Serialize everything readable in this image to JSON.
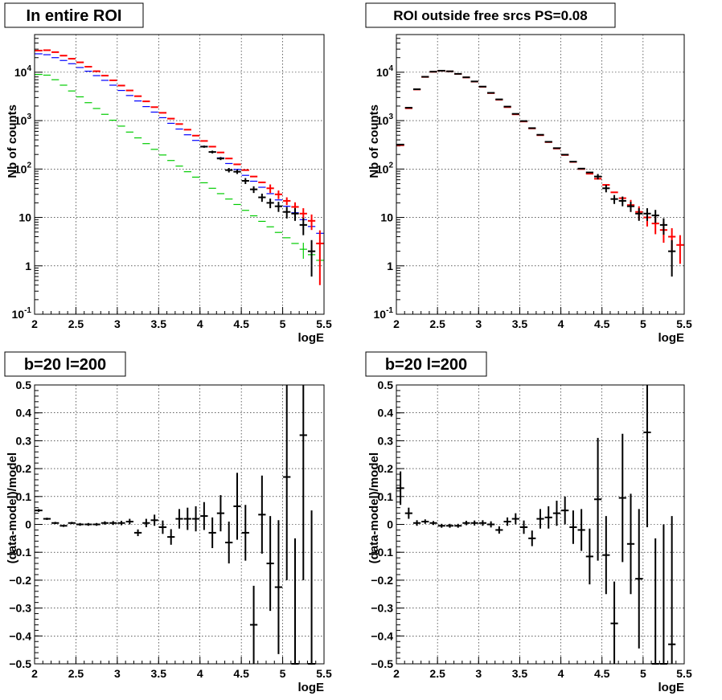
{
  "chart_data": [
    {
      "type": "histogram",
      "title": "In entire ROI",
      "xlabel": "logE",
      "ylabel": "Nb of counts",
      "xlim": [
        2,
        5.5
      ],
      "ylim": [
        0.1,
        60000
      ],
      "yscale": "log",
      "grid": true,
      "xticks": [
        "2",
        "2.5",
        "3",
        "3.5",
        "4",
        "4.5",
        "5",
        "5.5"
      ],
      "yticks": [
        {
          "label": "10^-1",
          "v": 0.1
        },
        {
          "label": "1",
          "v": 1
        },
        {
          "label": "10",
          "v": 10
        },
        {
          "label": "10^2",
          "v": 100
        },
        {
          "label": "10^3",
          "v": 1000
        },
        {
          "label": "10^4",
          "v": 10000
        }
      ],
      "series": [
        {
          "color": "#0000ff",
          "x": [
            2.05,
            2.15,
            2.25,
            2.35,
            2.45,
            2.55,
            2.65,
            2.75,
            2.85,
            2.95,
            3.05,
            3.15,
            3.25,
            3.35,
            3.45,
            3.55,
            3.65,
            3.75,
            3.85,
            3.95,
            4.05,
            4.15,
            4.25,
            4.35,
            4.45,
            4.55,
            4.65,
            4.75,
            4.85,
            4.95,
            5.05,
            5.15,
            5.25,
            5.35,
            5.45
          ],
          "y": [
            24000,
            23000,
            20000,
            17500,
            15000,
            12500,
            10500,
            8500,
            6800,
            5400,
            4200,
            3300,
            2550,
            1950,
            1500,
            1150,
            880,
            670,
            510,
            390,
            295,
            225,
            170,
            130,
            98,
            74,
            56,
            42,
            31,
            23,
            17,
            12.5,
            9,
            6.5,
            4.7
          ],
          "err": [
            0,
            0,
            0,
            0,
            0,
            0,
            0,
            0,
            0,
            0,
            0,
            0,
            0,
            0,
            0,
            0,
            0,
            0,
            0,
            0,
            0,
            0,
            0,
            0,
            0,
            0,
            0,
            0,
            0,
            0,
            0,
            0,
            0,
            0,
            0
          ]
        },
        {
          "color": "#00cc00",
          "x": [
            2.05,
            2.15,
            2.25,
            2.35,
            2.45,
            2.55,
            2.65,
            2.75,
            2.85,
            2.95,
            3.05,
            3.15,
            3.25,
            3.35,
            3.45,
            3.55,
            3.65,
            3.75,
            3.85,
            3.95,
            4.05,
            4.15,
            4.25,
            4.35,
            4.45,
            4.55,
            4.65,
            4.75,
            4.85,
            4.95,
            5.05,
            5.15,
            5.25,
            5.35,
            5.45
          ],
          "y": [
            9000,
            8700,
            7000,
            5400,
            4100,
            3100,
            2350,
            1780,
            1350,
            1020,
            770,
            580,
            440,
            335,
            255,
            195,
            150,
            115,
            88,
            68,
            52,
            40,
            31,
            24,
            18.5,
            14,
            10.8,
            8.3,
            6.4,
            4.9,
            3.8,
            2.9,
            2.2,
            1.7,
            1.3
          ],
          "err": [
            0,
            0,
            0,
            0,
            0,
            0,
            0,
            0,
            0,
            0,
            0,
            0,
            0,
            0,
            0,
            0,
            0,
            0,
            0,
            0,
            0,
            0,
            0,
            0,
            0,
            0,
            0,
            0,
            0,
            0,
            0,
            0,
            0.8,
            0.7,
            0.6
          ]
        },
        {
          "color": "#ff0000",
          "x": [
            2.05,
            2.15,
            2.25,
            2.35,
            2.45,
            2.55,
            2.65,
            2.75,
            2.85,
            2.95,
            3.05,
            3.15,
            3.25,
            3.35,
            3.45,
            3.55,
            3.65,
            3.75,
            3.85,
            3.95,
            4.05,
            4.15,
            4.25,
            4.35,
            4.45,
            4.55,
            4.65,
            4.75,
            4.85,
            4.95,
            5.05,
            5.15,
            5.25,
            5.35,
            5.45
          ],
          "y": [
            28000,
            28500,
            26000,
            22000,
            19000,
            16000,
            13000,
            10500,
            8500,
            6800,
            5300,
            4200,
            3200,
            2500,
            1900,
            1450,
            1100,
            850,
            650,
            490,
            380,
            290,
            220,
            165,
            125,
            95,
            70,
            53,
            40,
            30,
            22,
            16.5,
            12,
            8.5,
            2.9
          ],
          "err": [
            0,
            0,
            0,
            0,
            0,
            0,
            0,
            0,
            0,
            0,
            0,
            0,
            0,
            0,
            0,
            0,
            0,
            0,
            0,
            0,
            0,
            0,
            0,
            0,
            0,
            0,
            0,
            0,
            8,
            6,
            4,
            4,
            3.5,
            3,
            2.5
          ]
        },
        {
          "color": "#000000",
          "x": [
            4.05,
            4.15,
            4.25,
            4.35,
            4.45,
            4.55,
            4.65,
            4.75,
            4.85,
            4.95,
            5.05,
            5.15,
            5.25,
            5.35
          ],
          "y": [
            290,
            225,
            165,
            95,
            88,
            57,
            38,
            26,
            20,
            17,
            13,
            12,
            7,
            2
          ],
          "err": [
            15,
            15,
            12,
            10,
            9,
            8,
            6,
            5,
            4.5,
            4,
            3.5,
            3.5,
            2.7,
            1.4
          ]
        }
      ]
    },
    {
      "type": "histogram",
      "title": "ROI outside free srcs PS=0.08",
      "xlabel": "logE",
      "ylabel": "Nb of counts",
      "xlim": [
        2,
        5.5
      ],
      "ylim": [
        0.1,
        60000
      ],
      "yscale": "log",
      "grid": true,
      "xticks": [
        "2",
        "2.5",
        "3",
        "3.5",
        "4",
        "4.5",
        "5",
        "5.5"
      ],
      "yticks": [
        {
          "label": "10^-1",
          "v": 0.1
        },
        {
          "label": "1",
          "v": 1
        },
        {
          "label": "10",
          "v": 10
        },
        {
          "label": "10^2",
          "v": 100
        },
        {
          "label": "10^3",
          "v": 1000
        },
        {
          "label": "10^4",
          "v": 10000
        }
      ],
      "series": [
        {
          "color": "#ff0000",
          "x": [
            2.05,
            2.15,
            2.25,
            2.35,
            2.45,
            2.55,
            2.65,
            2.75,
            2.85,
            2.95,
            3.05,
            3.15,
            3.25,
            3.35,
            3.45,
            3.55,
            3.65,
            3.75,
            3.85,
            3.95,
            4.05,
            4.15,
            4.25,
            4.35,
            4.45,
            4.55,
            4.65,
            4.75,
            4.85,
            4.95,
            5.05,
            5.15,
            5.25,
            5.35,
            5.45
          ],
          "y": [
            310,
            1800,
            4400,
            8000,
            10200,
            10700,
            10400,
            9200,
            7800,
            6400,
            5000,
            3700,
            2700,
            1900,
            1350,
            960,
            690,
            500,
            360,
            265,
            195,
            140,
            100,
            80,
            63,
            47,
            33,
            25,
            18,
            13,
            10,
            7.5,
            5.5,
            4,
            2.7
          ],
          "err": [
            0,
            0,
            0,
            0,
            0,
            0,
            0,
            0,
            0,
            0,
            0,
            0,
            0,
            0,
            0,
            0,
            0,
            0,
            0,
            0,
            0,
            0,
            0,
            0,
            0,
            0,
            0,
            0,
            5,
            4,
            3.5,
            3,
            2.5,
            2,
            1.6
          ]
        },
        {
          "color": "#000000",
          "x": [
            2.05,
            2.15,
            2.25,
            2.35,
            2.45,
            2.55,
            2.65,
            2.75,
            2.85,
            2.95,
            3.05,
            3.15,
            3.25,
            3.35,
            3.45,
            3.55,
            3.65,
            3.75,
            3.85,
            3.95,
            4.05,
            4.15,
            4.25,
            4.35,
            4.45,
            4.55,
            4.65,
            4.75,
            4.85,
            4.95,
            5.05,
            5.15,
            5.25,
            5.35
          ],
          "y": [
            320,
            1850,
            4450,
            8050,
            10250,
            10750,
            10450,
            9250,
            7850,
            6450,
            5050,
            3750,
            2750,
            1950,
            1380,
            980,
            700,
            510,
            365,
            270,
            198,
            142,
            102,
            85,
            70,
            40,
            24,
            22,
            17,
            12,
            12,
            11,
            7,
            2
          ],
          "err": [
            0,
            0,
            0,
            0,
            0,
            0,
            0,
            0,
            0,
            0,
            0,
            0,
            0,
            0,
            0,
            0,
            0,
            0,
            0,
            0,
            0,
            0,
            0,
            0,
            9,
            7,
            5,
            5,
            4,
            3.5,
            3.5,
            3.3,
            2.6,
            1.4
          ]
        }
      ]
    },
    {
      "type": "histogram",
      "title": "b=20 l=200",
      "xlabel": "logE",
      "ylabel": "(data-model)/model",
      "xlim": [
        2,
        5.5
      ],
      "ylim": [
        -0.5,
        0.5
      ],
      "yscale": "linear",
      "grid": true,
      "xticks": [
        "2",
        "2.5",
        "3",
        "3.5",
        "4",
        "4.5",
        "5",
        "5.5"
      ],
      "yticks": [
        {
          "label": "−0.5",
          "v": -0.5
        },
        {
          "label": "−0.4",
          "v": -0.4
        },
        {
          "label": "−0.3",
          "v": -0.3
        },
        {
          "label": "−0.2",
          "v": -0.2
        },
        {
          "label": "−0.1",
          "v": -0.1
        },
        {
          "label": "0",
          "v": 0
        },
        {
          "label": "0.1",
          "v": 0.1
        },
        {
          "label": "0.2",
          "v": 0.2
        },
        {
          "label": "0.3",
          "v": 0.3
        },
        {
          "label": "0.4",
          "v": 0.4
        },
        {
          "label": "0.5",
          "v": 0.5
        }
      ],
      "series": [
        {
          "color": "#000000",
          "x": [
            2.05,
            2.15,
            2.25,
            2.35,
            2.45,
            2.55,
            2.65,
            2.75,
            2.85,
            2.95,
            3.05,
            3.15,
            3.25,
            3.35,
            3.45,
            3.55,
            3.65,
            3.75,
            3.85,
            3.95,
            4.05,
            4.15,
            4.25,
            4.35,
            4.45,
            4.55,
            4.65,
            4.75,
            4.85,
            4.95,
            5.05,
            5.15,
            5.25,
            5.35
          ],
          "y": [
            0.05,
            0.02,
            0.005,
            -0.005,
            0.005,
            0.0,
            0.0,
            0.0,
            0.005,
            0.005,
            0.005,
            0.01,
            -0.03,
            0.005,
            0.015,
            -0.01,
            -0.045,
            0.02,
            0.02,
            0.02,
            0.03,
            -0.03,
            0.04,
            -0.065,
            0.065,
            -0.03,
            -0.36,
            0.035,
            -0.14,
            -0.225,
            0.17,
            -0.5,
            0.32,
            -0.5
          ],
          "err": [
            0.005,
            0.004,
            0.004,
            0.004,
            0.004,
            0.005,
            0.005,
            0.005,
            0.006,
            0.007,
            0.008,
            0.01,
            0.012,
            0.015,
            0.02,
            0.024,
            0.028,
            0.035,
            0.04,
            0.045,
            0.05,
            0.055,
            0.065,
            0.075,
            0.12,
            0.1,
            0.14,
            0.14,
            0.17,
            0.24,
            0.37,
            0.45,
            0.52,
            0.55
          ]
        }
      ]
    },
    {
      "type": "histogram",
      "title": "b=20 l=200",
      "xlabel": "logE",
      "ylabel": "(data-model)/model",
      "xlim": [
        2,
        5.5
      ],
      "ylim": [
        -0.5,
        0.5
      ],
      "yscale": "linear",
      "grid": true,
      "xticks": [
        "2",
        "2.5",
        "3",
        "3.5",
        "4",
        "4.5",
        "5",
        "5.5"
      ],
      "yticks": [
        {
          "label": "−0.5",
          "v": -0.5
        },
        {
          "label": "−0.4",
          "v": -0.4
        },
        {
          "label": "−0.3",
          "v": -0.3
        },
        {
          "label": "−0.2",
          "v": -0.2
        },
        {
          "label": "−0.1",
          "v": -0.1
        },
        {
          "label": "0",
          "v": 0
        },
        {
          "label": "0.1",
          "v": 0.1
        },
        {
          "label": "0.2",
          "v": 0.2
        },
        {
          "label": "0.3",
          "v": 0.3
        },
        {
          "label": "0.4",
          "v": 0.4
        },
        {
          "label": "0.5",
          "v": 0.5
        }
      ],
      "series": [
        {
          "color": "#000000",
          "x": [
            2.05,
            2.15,
            2.25,
            2.35,
            2.45,
            2.55,
            2.65,
            2.75,
            2.85,
            2.95,
            3.05,
            3.15,
            3.25,
            3.35,
            3.45,
            3.55,
            3.65,
            3.75,
            3.85,
            3.95,
            4.05,
            4.15,
            4.25,
            4.35,
            4.45,
            4.55,
            4.65,
            4.75,
            4.85,
            4.95,
            5.05,
            5.15,
            5.25,
            5.35
          ],
          "y": [
            0.13,
            0.04,
            0.005,
            0.01,
            0.005,
            -0.005,
            -0.005,
            -0.005,
            0.005,
            0.005,
            0.005,
            0.0,
            -0.02,
            0.01,
            0.02,
            -0.01,
            -0.05,
            0.02,
            0.025,
            0.04,
            0.05,
            -0.01,
            -0.02,
            -0.115,
            0.09,
            -0.11,
            -0.355,
            0.095,
            -0.07,
            -0.195,
            0.33,
            -0.5,
            -0.5,
            -0.43
          ],
          "err": [
            0.06,
            0.02,
            0.01,
            0.008,
            0.007,
            0.007,
            0.007,
            0.007,
            0.008,
            0.009,
            0.01,
            0.011,
            0.013,
            0.015,
            0.02,
            0.024,
            0.028,
            0.035,
            0.04,
            0.045,
            0.05,
            0.06,
            0.075,
            0.1,
            0.22,
            0.14,
            0.15,
            0.23,
            0.18,
            0.25,
            0.34,
            0.45,
            0.5,
            0.46
          ]
        }
      ]
    }
  ]
}
